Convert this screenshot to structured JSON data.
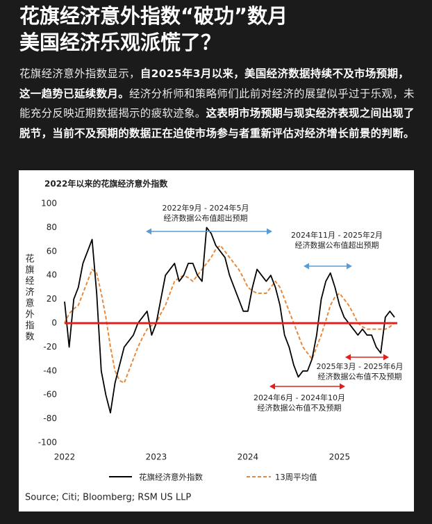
{
  "header": {
    "title_lines": [
      "花旗经济意外指数“破功”数月",
      "美国经济乐观派慌了？"
    ]
  },
  "intro": {
    "segments": [
      {
        "text": "花旗经济意外指数显示，",
        "bold": false
      },
      {
        "text": "自2025年3月以来，美国经济数据持续不及市场预期，这一趋势已延续数月。",
        "bold": true
      },
      {
        "text": "经济分析师和策略师们此前对经济的展望似乎过于乐观，未能充分反映近期数据揭示的疲软迹象。",
        "bold": false
      },
      {
        "text": "这表明市场预期与现实经济表现之间出现了脱节，当前不及预期的数据正在迫使市场参与者重新评估对经济增长前景的判断。",
        "bold": true
      }
    ]
  },
  "chart_data": {
    "type": "line",
    "title": "2022年以来的花旗经济意外指数",
    "y_label": "花旗经济意外指数",
    "source": "Source; Citi; Bloomberg; RSM US LLP",
    "x": [
      2022.0,
      2022.05,
      2022.1,
      2022.15,
      2022.2,
      2022.25,
      2022.3,
      2022.35,
      2022.4,
      2022.45,
      2022.5,
      2022.55,
      2022.6,
      2022.65,
      2022.7,
      2022.75,
      2022.8,
      2022.85,
      2022.9,
      2022.95,
      2023.0,
      2023.05,
      2023.1,
      2023.15,
      2023.2,
      2023.25,
      2023.3,
      2023.35,
      2023.4,
      2023.45,
      2023.5,
      2023.55,
      2023.6,
      2023.65,
      2023.7,
      2023.75,
      2023.8,
      2023.85,
      2023.9,
      2023.95,
      2024.0,
      2024.05,
      2024.1,
      2024.15,
      2024.2,
      2024.25,
      2024.3,
      2024.35,
      2024.4,
      2024.45,
      2024.5,
      2024.55,
      2024.6,
      2024.65,
      2024.7,
      2024.75,
      2024.8,
      2024.85,
      2024.9,
      2024.95,
      2025.0,
      2025.05,
      2025.1,
      2025.15,
      2025.2,
      2025.25,
      2025.3,
      2025.35,
      2025.4,
      2025.45,
      2025.5,
      2025.55,
      2025.6
    ],
    "series": [
      {
        "name": "花旗经济意外指数",
        "color": "#000000",
        "style": "solid",
        "values": [
          18,
          -20,
          20,
          30,
          50,
          60,
          70,
          25,
          -40,
          -60,
          -75,
          -50,
          -35,
          -20,
          -15,
          -10,
          0,
          5,
          10,
          -10,
          0,
          20,
          40,
          45,
          50,
          35,
          40,
          50,
          50,
          40,
          35,
          80,
          75,
          65,
          60,
          55,
          40,
          30,
          20,
          10,
          10,
          30,
          45,
          40,
          35,
          40,
          30,
          15,
          -10,
          -20,
          -35,
          -45,
          -40,
          -40,
          -30,
          -10,
          20,
          35,
          42,
          30,
          15,
          5,
          0,
          -5,
          -10,
          -5,
          -10,
          -10,
          -20,
          -25,
          5,
          10,
          5
        ]
      },
      {
        "name": "13周平均值",
        "color": "#e8883a",
        "style": "dashed",
        "values": [
          0,
          8,
          12,
          15,
          25,
          35,
          45,
          42,
          25,
          5,
          -20,
          -40,
          -48,
          -50,
          -40,
          -30,
          -20,
          -12,
          -5,
          -2,
          0,
          8,
          15,
          25,
          35,
          38,
          40,
          38,
          35,
          40,
          45,
          50,
          55,
          62,
          65,
          60,
          55,
          50,
          45,
          38,
          30,
          27,
          25,
          25,
          25,
          30,
          35,
          30,
          20,
          10,
          0,
          -10,
          -20,
          -25,
          -30,
          -20,
          -10,
          2,
          15,
          22,
          25,
          20,
          15,
          8,
          0,
          -3,
          -5,
          -5,
          -5,
          -5,
          -5,
          -3,
          0
        ]
      }
    ],
    "xlim": [
      2022,
      2025.63
    ],
    "xticks": [
      2022,
      2023,
      2024,
      2025
    ],
    "ylim": [
      -100,
      100
    ],
    "yticks": [
      -100,
      -80,
      -60,
      -40,
      -20,
      0,
      20,
      40,
      60,
      80,
      100
    ],
    "zero_line_color": "#e0201e",
    "annotations": [
      {
        "lines": [
          "2022年9月 - 2024年5月",
          "经济数据公布值超出预期"
        ],
        "color": "#5b9bd5"
      },
      {
        "lines": [
          "2024年11月 - 2025年2月",
          "经济数据公布值超出预期"
        ],
        "color": "#5b9bd5"
      },
      {
        "lines": [
          "2025年3月 - 2025年6月",
          "经济数据公布值不及预期"
        ],
        "color": "#e0201e"
      },
      {
        "lines": [
          "2024年6月 - 2024年10月",
          "经济数据公布值不及预期"
        ],
        "color": "#e0201e"
      }
    ]
  }
}
